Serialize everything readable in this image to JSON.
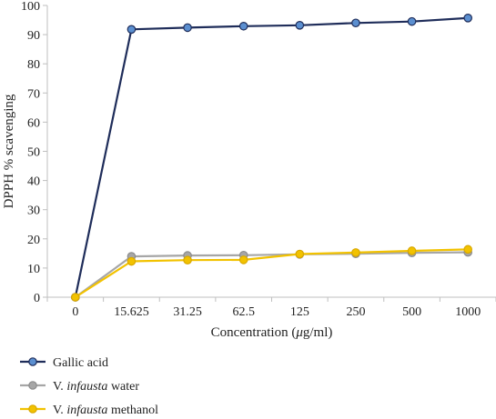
{
  "chart_data": {
    "type": "line",
    "categories": [
      "0",
      "15.625",
      "31.25",
      "62.5",
      "125",
      "250",
      "500",
      "1000"
    ],
    "ylabel": "DPPH % scavenging",
    "xlabel": {
      "prefix": "Concentration (",
      "unit_italic": "μ",
      "suffix": "g/ml)"
    },
    "ylim": [
      0,
      100
    ],
    "yticks": [
      0,
      10,
      20,
      30,
      40,
      50,
      60,
      70,
      80,
      90,
      100
    ],
    "grid": false,
    "legend_position": "bottom-left",
    "series": [
      {
        "name": "Gallic acid",
        "legend_parts": [
          {
            "text": "Gallic acid",
            "italic": false
          }
        ],
        "line_color": "#1f2d5a",
        "marker_fill": "#5b8fd0",
        "marker_stroke": "#1f2d5a",
        "values": [
          0,
          91.8,
          92.4,
          92.9,
          93.2,
          94.0,
          94.5,
          95.7
        ]
      },
      {
        "name": "V. infausta water",
        "legend_parts": [
          {
            "text": "V. ",
            "italic": false
          },
          {
            "text": "infausta",
            "italic": true
          },
          {
            "text": " water",
            "italic": false
          }
        ],
        "line_color": "#a6a6a6",
        "marker_fill": "#a6a6a6",
        "marker_stroke": "#8c8c8c",
        "values": [
          0,
          14.0,
          14.3,
          14.4,
          14.7,
          14.9,
          15.2,
          15.4
        ]
      },
      {
        "name": "V. infausta methanol",
        "legend_parts": [
          {
            "text": "V. ",
            "italic": false
          },
          {
            "text": "infausta",
            "italic": true
          },
          {
            "text": " methanol",
            "italic": false
          }
        ],
        "line_color": "#f2c200",
        "marker_fill": "#f2c200",
        "marker_stroke": "#d9a800",
        "values": [
          0,
          12.3,
          12.7,
          12.8,
          14.8,
          15.3,
          15.9,
          16.4
        ]
      }
    ]
  }
}
